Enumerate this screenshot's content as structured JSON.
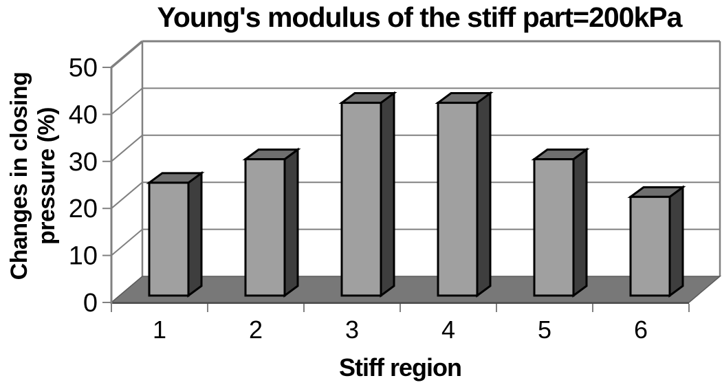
{
  "chart": {
    "title": "Young's modulus of the stiff part=200kPa",
    "y_axis_title_line1": "Changes in closing",
    "y_axis_title_line2": "pressure (%)",
    "x_axis_title": "Stiff region"
  },
  "chart_data": {
    "type": "bar",
    "projection": "3d",
    "title": "Young's modulus of the stiff part=200kPa",
    "categories": [
      "1",
      "2",
      "3",
      "4",
      "5",
      "6"
    ],
    "values": [
      24,
      29,
      41,
      41,
      29,
      21
    ],
    "xlabel": "Stiff region",
    "ylabel": "Changes in closing pressure (%)",
    "ylim": [
      0,
      50
    ],
    "yticks": [
      0,
      10,
      20,
      30,
      40,
      50
    ],
    "grid": true,
    "legend": false,
    "colors": {
      "bar_front": "#a0a0a0",
      "bar_top": "#6f6f6f",
      "bar_side": "#3e3e3e",
      "bar_outline": "#000000",
      "floor": "#787878",
      "floor_edge": "#4a4a4a",
      "gridline": "#808080",
      "axis_line": "#808080",
      "text": "#000000",
      "background": "#ffffff"
    }
  }
}
